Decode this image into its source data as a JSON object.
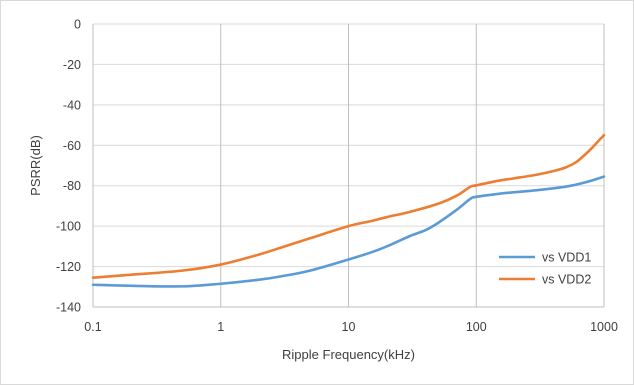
{
  "chart_data": {
    "type": "line",
    "title": "",
    "xlabel": "Ripple Frequency(kHz)",
    "ylabel": "PSRR(dB)",
    "x_scale": "log",
    "xlim": [
      0.1,
      1000
    ],
    "ylim": [
      -140,
      0
    ],
    "x_ticks": [
      0.1,
      1,
      10,
      100,
      1000
    ],
    "x_tick_labels": [
      "0.1",
      "1",
      "10",
      "100",
      "1000"
    ],
    "y_ticks": [
      0,
      -20,
      -40,
      -60,
      -80,
      -100,
      -120,
      -140
    ],
    "y_tick_labels": [
      "0",
      "-20",
      "-40",
      "-60",
      "-80",
      "-100",
      "-120",
      "-140"
    ],
    "grid": {
      "horizontal": true,
      "vertical": true
    },
    "legend_position": "bottom-right",
    "series": [
      {
        "name": "vs VDD1",
        "color": "#5b9bd5",
        "points": [
          {
            "x": 0.1,
            "y": -129
          },
          {
            "x": 0.2,
            "y": -129.5
          },
          {
            "x": 0.5,
            "y": -129.8
          },
          {
            "x": 1,
            "y": -128.5
          },
          {
            "x": 2,
            "y": -126.5
          },
          {
            "x": 3,
            "y": -124.8
          },
          {
            "x": 5,
            "y": -122
          },
          {
            "x": 10,
            "y": -116.5
          },
          {
            "x": 15,
            "y": -113
          },
          {
            "x": 20,
            "y": -110
          },
          {
            "x": 30,
            "y": -105
          },
          {
            "x": 40,
            "y": -102
          },
          {
            "x": 50,
            "y": -98.5
          },
          {
            "x": 70,
            "y": -92
          },
          {
            "x": 90,
            "y": -86.5
          },
          {
            "x": 100,
            "y": -85.5
          },
          {
            "x": 150,
            "y": -84
          },
          {
            "x": 200,
            "y": -83.2
          },
          {
            "x": 300,
            "y": -82.2
          },
          {
            "x": 500,
            "y": -80.5
          },
          {
            "x": 700,
            "y": -78.5
          },
          {
            "x": 1000,
            "y": -75.5
          }
        ]
      },
      {
        "name": "vs VDD2",
        "color": "#ed7d31",
        "points": [
          {
            "x": 0.1,
            "y": -125.5
          },
          {
            "x": 0.2,
            "y": -124
          },
          {
            "x": 0.5,
            "y": -122
          },
          {
            "x": 1,
            "y": -119
          },
          {
            "x": 2,
            "y": -114
          },
          {
            "x": 3,
            "y": -110.5
          },
          {
            "x": 5,
            "y": -106
          },
          {
            "x": 10,
            "y": -100
          },
          {
            "x": 15,
            "y": -97.5
          },
          {
            "x": 20,
            "y": -95.5
          },
          {
            "x": 30,
            "y": -93
          },
          {
            "x": 50,
            "y": -89
          },
          {
            "x": 70,
            "y": -85
          },
          {
            "x": 90,
            "y": -80.5
          },
          {
            "x": 100,
            "y": -79.8
          },
          {
            "x": 150,
            "y": -77.5
          },
          {
            "x": 200,
            "y": -76.3
          },
          {
            "x": 300,
            "y": -74.5
          },
          {
            "x": 400,
            "y": -72.8
          },
          {
            "x": 500,
            "y": -71
          },
          {
            "x": 600,
            "y": -68.5
          },
          {
            "x": 700,
            "y": -65
          },
          {
            "x": 800,
            "y": -61.5
          },
          {
            "x": 900,
            "y": -58
          },
          {
            "x": 1000,
            "y": -55
          }
        ]
      }
    ]
  }
}
